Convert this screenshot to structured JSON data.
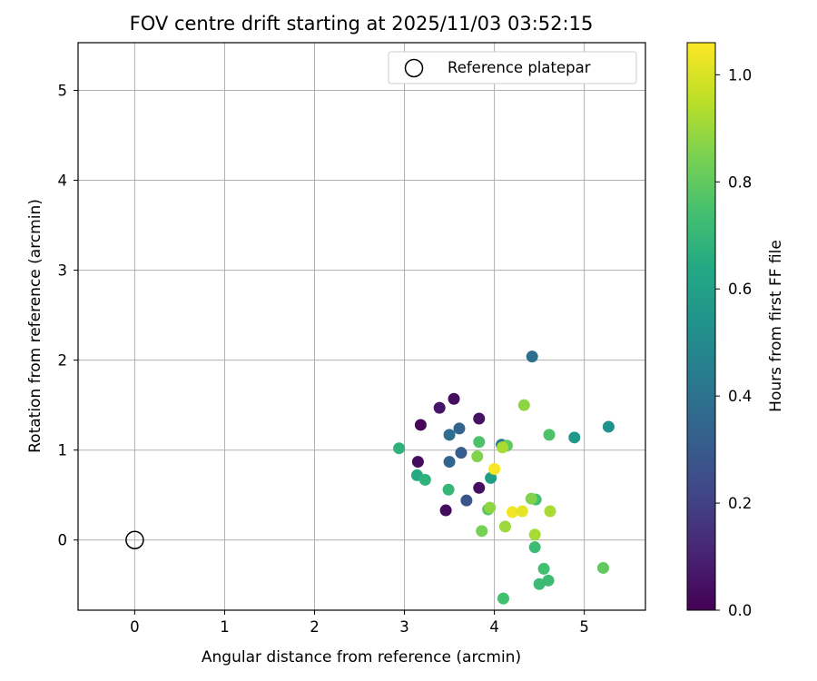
{
  "chart_data": {
    "type": "scatter",
    "title": "FOV centre drift starting at 2025/11/03 03:52:15",
    "xlabel": "Angular distance from reference (arcmin)",
    "ylabel": "Rotation from reference (arcmin)",
    "xlim": [
      -0.63,
      5.68
    ],
    "ylim": [
      -0.78,
      5.53
    ],
    "x_ticks": [
      "0",
      "1",
      "2",
      "3",
      "4",
      "5"
    ],
    "y_ticks": [
      "0",
      "1",
      "2",
      "3",
      "4",
      "5"
    ],
    "grid": true,
    "legend": {
      "position": "top-right",
      "entries": [
        "Reference platepar"
      ]
    },
    "reference_point": {
      "x": 0,
      "y": 0,
      "label": "Reference platepar"
    },
    "colorbar": {
      "label": "Hours from first FF file",
      "range": [
        0.0,
        1.06
      ],
      "ticks": [
        "0.0",
        "0.2",
        "0.4",
        "0.6",
        "0.8",
        "1.0"
      ],
      "colormap": "viridis"
    },
    "points": [
      {
        "x": 3.18,
        "y": 1.28,
        "hours": 0.02
      },
      {
        "x": 3.39,
        "y": 1.47,
        "hours": 0.06
      },
      {
        "x": 3.55,
        "y": 1.57,
        "hours": 0.04
      },
      {
        "x": 3.83,
        "y": 1.35,
        "hours": 0.05
      },
      {
        "x": 3.15,
        "y": 0.87,
        "hours": 0.03
      },
      {
        "x": 3.46,
        "y": 0.33,
        "hours": 0.03
      },
      {
        "x": 3.83,
        "y": 0.58,
        "hours": 0.04
      },
      {
        "x": 3.69,
        "y": 0.44,
        "hours": 0.28
      },
      {
        "x": 3.5,
        "y": 1.17,
        "hours": 0.38
      },
      {
        "x": 3.61,
        "y": 1.24,
        "hours": 0.34
      },
      {
        "x": 3.63,
        "y": 0.97,
        "hours": 0.31
      },
      {
        "x": 3.5,
        "y": 0.87,
        "hours": 0.34
      },
      {
        "x": 4.42,
        "y": 2.04,
        "hours": 0.38
      },
      {
        "x": 4.08,
        "y": 1.06,
        "hours": 0.42
      },
      {
        "x": 5.27,
        "y": 1.26,
        "hours": 0.53
      },
      {
        "x": 4.89,
        "y": 1.14,
        "hours": 0.56
      },
      {
        "x": 3.96,
        "y": 0.69,
        "hours": 0.59
      },
      {
        "x": 2.94,
        "y": 1.02,
        "hours": 0.68
      },
      {
        "x": 3.14,
        "y": 0.72,
        "hours": 0.64
      },
      {
        "x": 3.23,
        "y": 0.67,
        "hours": 0.68
      },
      {
        "x": 3.49,
        "y": 0.56,
        "hours": 0.7
      },
      {
        "x": 3.83,
        "y": 1.09,
        "hours": 0.76
      },
      {
        "x": 4.14,
        "y": 1.05,
        "hours": 0.8
      },
      {
        "x": 4.61,
        "y": 1.17,
        "hours": 0.76
      },
      {
        "x": 4.46,
        "y": 0.45,
        "hours": 0.74
      },
      {
        "x": 4.45,
        "y": -0.08,
        "hours": 0.72
      },
      {
        "x": 4.55,
        "y": -0.32,
        "hours": 0.74
      },
      {
        "x": 4.6,
        "y": -0.45,
        "hours": 0.72
      },
      {
        "x": 4.5,
        "y": -0.49,
        "hours": 0.72
      },
      {
        "x": 4.1,
        "y": -0.65,
        "hours": 0.74
      },
      {
        "x": 5.21,
        "y": -0.31,
        "hours": 0.8
      },
      {
        "x": 3.93,
        "y": 0.34,
        "hours": 0.78
      },
      {
        "x": 3.86,
        "y": 0.1,
        "hours": 0.84
      },
      {
        "x": 3.81,
        "y": 0.93,
        "hours": 0.86
      },
      {
        "x": 4.33,
        "y": 1.5,
        "hours": 0.88
      },
      {
        "x": 4.09,
        "y": 1.03,
        "hours": 0.92
      },
      {
        "x": 4.41,
        "y": 0.46,
        "hours": 0.86
      },
      {
        "x": 3.95,
        "y": 0.36,
        "hours": 0.88
      },
      {
        "x": 4.12,
        "y": 0.15,
        "hours": 0.9
      },
      {
        "x": 4.45,
        "y": 0.06,
        "hours": 0.92
      },
      {
        "x": 4.62,
        "y": 0.32,
        "hours": 0.92
      },
      {
        "x": 4.0,
        "y": 0.79,
        "hours": 1.05
      },
      {
        "x": 4.2,
        "y": 0.31,
        "hours": 1.04
      },
      {
        "x": 4.31,
        "y": 0.32,
        "hours": 1.02
      }
    ]
  }
}
